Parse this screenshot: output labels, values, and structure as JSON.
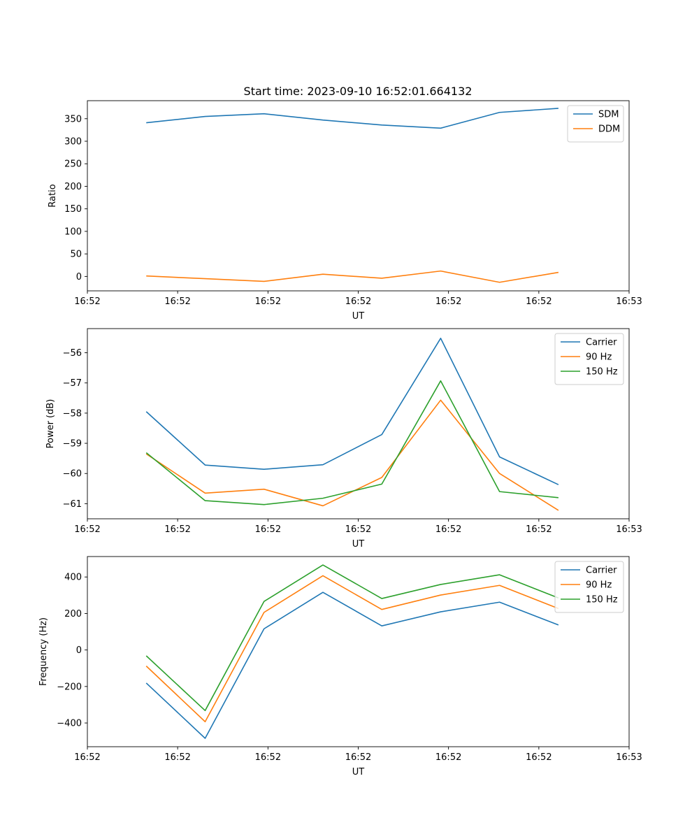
{
  "title": "Start time: 2023-09-10 16:52:01.664132",
  "colors": {
    "blue": "#1f77b4",
    "orange": "#ff7f0e",
    "green": "#2ca02c"
  },
  "chart_data": [
    {
      "type": "line",
      "title": "Start time: 2023-09-10 16:52:01.664132",
      "xlabel": "UT",
      "ylabel": "Ratio",
      "x": [
        1,
        2,
        3,
        4,
        5,
        6,
        7,
        8
      ],
      "xlim": [
        0,
        9.2
      ],
      "x_ticks": [
        0,
        1.533,
        3.067,
        4.6,
        6.133,
        7.667,
        9.2
      ],
      "x_tick_labels": [
        "16:52",
        "16:52",
        "16:52",
        "16:52",
        "16:52",
        "16:52",
        "16:53"
      ],
      "ylim": [
        -32,
        390
      ],
      "y_ticks": [
        0,
        50,
        100,
        150,
        200,
        250,
        300,
        350
      ],
      "y_tick_labels": [
        "0",
        "50",
        "100",
        "150",
        "200",
        "250",
        "300",
        "350"
      ],
      "legend": "top-right",
      "series": [
        {
          "name": "SDM",
          "color": "#1f77b4",
          "values": [
            341,
            355,
            361,
            347,
            336,
            329,
            364,
            373
          ]
        },
        {
          "name": "DDM",
          "color": "#ff7f0e",
          "values": [
            1,
            -5,
            -11,
            5,
            -4,
            12,
            -13,
            9
          ]
        }
      ]
    },
    {
      "type": "line",
      "title": "",
      "xlabel": "UT",
      "ylabel": "Power (dB)",
      "x": [
        1,
        2,
        3,
        4,
        5,
        6,
        7,
        8
      ],
      "xlim": [
        0,
        9.2
      ],
      "x_ticks": [
        0,
        1.533,
        3.067,
        4.6,
        6.133,
        7.667,
        9.2
      ],
      "x_tick_labels": [
        "16:52",
        "16:52",
        "16:52",
        "16:52",
        "16:52",
        "16:52",
        "16:53"
      ],
      "ylim": [
        -61.5,
        -55.2
      ],
      "y_ticks": [
        -61,
        -60,
        -59,
        -58,
        -57,
        -56
      ],
      "y_tick_labels": [
        "−61",
        "−60",
        "−59",
        "−58",
        "−57",
        "−56"
      ],
      "legend": "top-right",
      "series": [
        {
          "name": "Carrier",
          "color": "#1f77b4",
          "values": [
            -57.95,
            -59.72,
            -59.86,
            -59.71,
            -58.71,
            -55.52,
            -59.45,
            -60.37
          ]
        },
        {
          "name": "90 Hz",
          "color": "#ff7f0e",
          "values": [
            -59.35,
            -60.65,
            -60.52,
            -61.07,
            -60.13,
            -57.57,
            -60.0,
            -61.22
          ]
        },
        {
          "name": "150 Hz",
          "color": "#2ca02c",
          "values": [
            -59.31,
            -60.9,
            -61.03,
            -60.82,
            -60.35,
            -56.93,
            -60.6,
            -60.8
          ]
        }
      ]
    },
    {
      "type": "line",
      "title": "",
      "xlabel": "UT",
      "ylabel": "Frequency (Hz)",
      "x": [
        1,
        2,
        3,
        4,
        5,
        6,
        7,
        8
      ],
      "xlim": [
        0,
        9.2
      ],
      "x_ticks": [
        0,
        1.533,
        3.067,
        4.6,
        6.133,
        7.667,
        9.2
      ],
      "x_tick_labels": [
        "16:52",
        "16:52",
        "16:52",
        "16:52",
        "16:52",
        "16:52",
        "16:53"
      ],
      "ylim": [
        -530,
        512
      ],
      "y_ticks": [
        -400,
        -200,
        0,
        200,
        400
      ],
      "y_tick_labels": [
        "−400",
        "−200",
        "0",
        "200",
        "400"
      ],
      "legend": "top-right",
      "series": [
        {
          "name": "Carrier",
          "color": "#1f77b4",
          "values": [
            -181,
            -484,
            116,
            316,
            132,
            209,
            262,
            137
          ]
        },
        {
          "name": "90 Hz",
          "color": "#ff7f0e",
          "values": [
            -88,
            -393,
            206,
            407,
            222,
            301,
            354,
            227
          ]
        },
        {
          "name": "150 Hz",
          "color": "#2ca02c",
          "values": [
            -32,
            -332,
            266,
            466,
            282,
            359,
            412,
            285
          ]
        }
      ]
    }
  ]
}
